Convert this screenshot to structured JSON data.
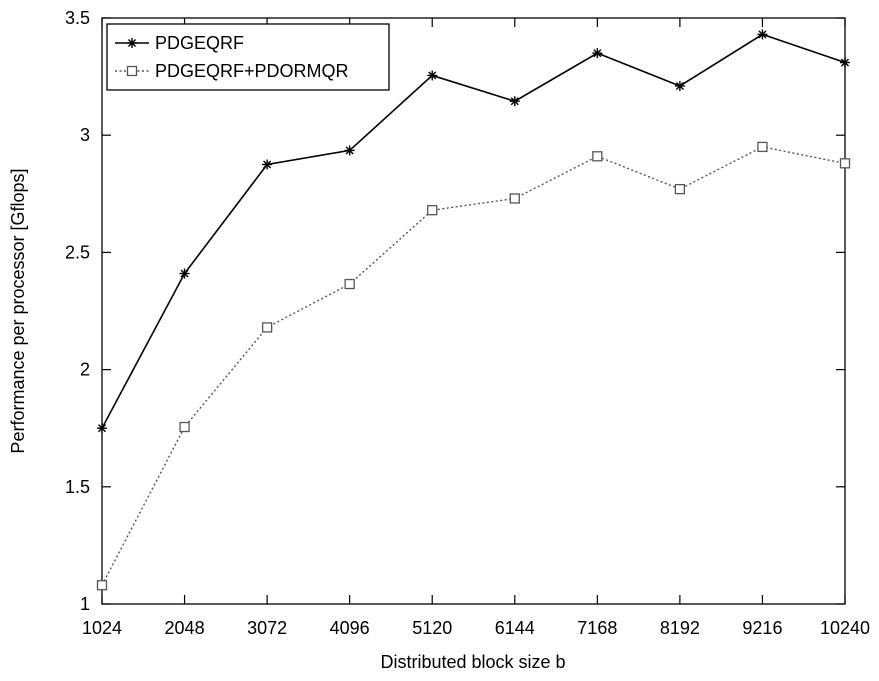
{
  "chart_data": {
    "type": "line",
    "title": "",
    "xlabel": "Distributed block size b",
    "ylabel": "Performance per processor [Gflops]",
    "x": [
      1024,
      2048,
      3072,
      4096,
      5120,
      6144,
      7168,
      8192,
      9216,
      10240
    ],
    "x_tick_labels": [
      "1024",
      "2048",
      "3072",
      "4096",
      "5120",
      "6144",
      "7168",
      "8192",
      "9216",
      "10240"
    ],
    "xlim": [
      1024,
      10240
    ],
    "ylim": [
      1,
      3.5
    ],
    "y_ticks": [
      1,
      1.5,
      2,
      2.5,
      3,
      3.5
    ],
    "y_tick_labels": [
      "1",
      "1.5",
      "2",
      "2.5",
      "3",
      "3.5"
    ],
    "grid": false,
    "legend_position": "top-left",
    "series": [
      {
        "name": "PDGEQRF",
        "values": [
          1.75,
          2.41,
          2.875,
          2.935,
          3.255,
          3.145,
          3.35,
          3.21,
          3.43,
          3.31
        ],
        "line_style": "solid",
        "marker": "asterisk",
        "color": "#000000"
      },
      {
        "name": "PDGEQRF+PDORMQR",
        "values": [
          1.08,
          1.755,
          2.18,
          2.365,
          2.68,
          2.73,
          2.91,
          2.77,
          2.95,
          2.88
        ],
        "line_style": "dotted",
        "marker": "open-square",
        "color": "#555555"
      }
    ]
  }
}
